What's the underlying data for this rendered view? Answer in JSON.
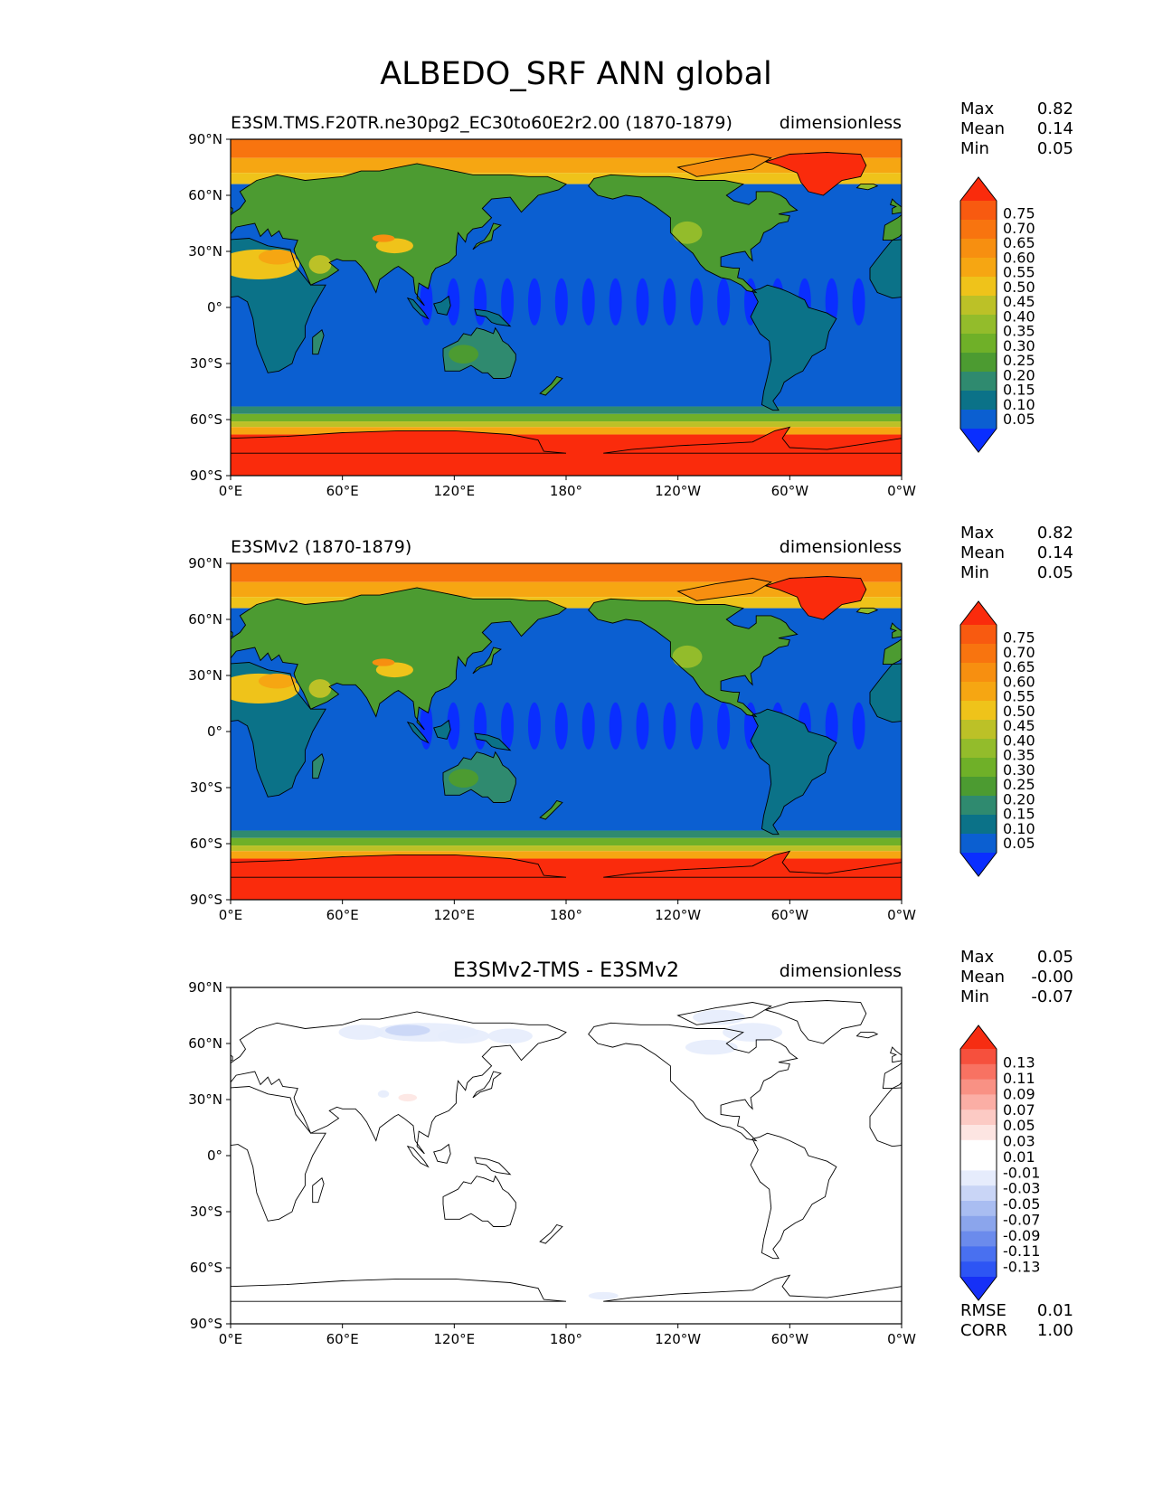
{
  "figure": {
    "title": "ALBEDO_SRF ANN global"
  },
  "colors": {
    "albedo": [
      "#0a2eff",
      "#0b5fd1",
      "#0b7288",
      "#2f8a6f",
      "#4c9b31",
      "#6fb028",
      "#93bc2b",
      "#bcc127",
      "#efc31a",
      "#f6a612",
      "#f78f10",
      "#f8740f",
      "#f85a10",
      "#fa2b0c"
    ],
    "diff": [
      "#1630f7",
      "#2d55f4",
      "#4970f0",
      "#6b8bec",
      "#8ba5ec",
      "#a9bdf1",
      "#c9d5f6",
      "#e6ecfc",
      "#ffffff",
      "#ffffff",
      "#fde5e2",
      "#fccac4",
      "#fbaea5",
      "#f99184",
      "#f87262",
      "#f6503d",
      "#f62d12"
    ],
    "land_ocean_outline": "#000000"
  },
  "chart_data": [
    {
      "type": "heatmap",
      "id": "test",
      "title_left": "E3SM.TMS.F20TR.ne30pg2_EC30to60E2r2.00 (1870-1879)",
      "title_center": "",
      "title_right": "dimensionless",
      "x_ticks": [
        "0°E",
        "60°E",
        "120°E",
        "180°",
        "120°W",
        "60°W",
        "0°W"
      ],
      "y_ticks": [
        "90°N",
        "60°N",
        "30°N",
        "0°",
        "30°S",
        "60°S",
        "90°S"
      ],
      "xlim": [
        0,
        360
      ],
      "ylim": [
        -90,
        90
      ],
      "stats": [
        {
          "label": "Max",
          "value": "0.82"
        },
        {
          "label": "Mean",
          "value": "0.14"
        },
        {
          "label": "Min",
          "value": "0.05"
        }
      ],
      "colorbar": {
        "levels": [
          "0.05",
          "0.10",
          "0.15",
          "0.20",
          "0.25",
          "0.30",
          "0.35",
          "0.40",
          "0.45",
          "0.50",
          "0.55",
          "0.60",
          "0.65",
          "0.70",
          "0.75"
        ],
        "palette": "albedo"
      },
      "extra_stats": []
    },
    {
      "type": "heatmap",
      "id": "reference",
      "title_left": "E3SMv2 (1870-1879)",
      "title_center": "",
      "title_right": "dimensionless",
      "x_ticks": [
        "0°E",
        "60°E",
        "120°E",
        "180°",
        "120°W",
        "60°W",
        "0°W"
      ],
      "y_ticks": [
        "90°N",
        "60°N",
        "30°N",
        "0°",
        "30°S",
        "60°S",
        "90°S"
      ],
      "xlim": [
        0,
        360
      ],
      "ylim": [
        -90,
        90
      ],
      "stats": [
        {
          "label": "Max",
          "value": "0.82"
        },
        {
          "label": "Mean",
          "value": "0.14"
        },
        {
          "label": "Min",
          "value": "0.05"
        }
      ],
      "colorbar": {
        "levels": [
          "0.05",
          "0.10",
          "0.15",
          "0.20",
          "0.25",
          "0.30",
          "0.35",
          "0.40",
          "0.45",
          "0.50",
          "0.55",
          "0.60",
          "0.65",
          "0.70",
          "0.75"
        ],
        "palette": "albedo"
      },
      "extra_stats": []
    },
    {
      "type": "heatmap",
      "id": "difference",
      "title_left": "",
      "title_center": "E3SMv2-TMS - E3SMv2",
      "title_right": "dimensionless",
      "x_ticks": [
        "0°E",
        "60°E",
        "120°E",
        "180°",
        "120°W",
        "60°W",
        "0°W"
      ],
      "y_ticks": [
        "90°N",
        "60°N",
        "30°N",
        "0°",
        "30°S",
        "60°S",
        "90°S"
      ],
      "xlim": [
        0,
        360
      ],
      "ylim": [
        -90,
        90
      ],
      "stats": [
        {
          "label": "Max",
          "value": "0.05"
        },
        {
          "label": "Mean",
          "value": "-0.00"
        },
        {
          "label": "Min",
          "value": "-0.07"
        }
      ],
      "colorbar": {
        "levels": [
          "-0.13",
          "-0.11",
          "-0.09",
          "-0.07",
          "-0.05",
          "-0.03",
          "-0.01",
          "0.01",
          "0.03",
          "0.05",
          "0.07",
          "0.09",
          "0.11",
          "0.13"
        ],
        "palette": "diff"
      },
      "extra_stats": [
        {
          "label": "RMSE",
          "value": "0.01"
        },
        {
          "label": "CORR",
          "value": "1.00"
        }
      ]
    }
  ]
}
